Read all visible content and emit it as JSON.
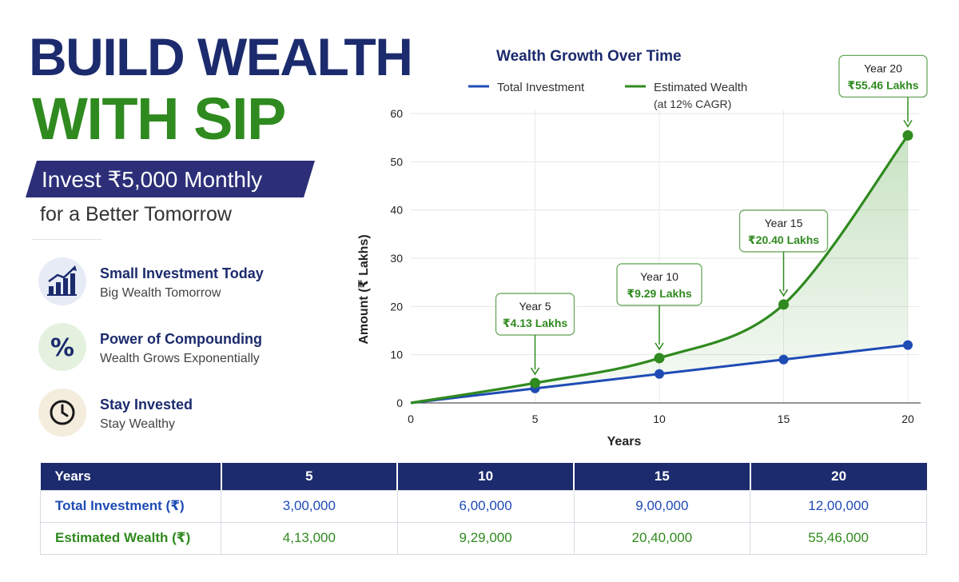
{
  "left": {
    "title_line1": "BUILD WEALTH",
    "title_line2": "WITH SIP",
    "banner": "Invest ₹5,000 Monthly",
    "subline": "for a Better Tomorrow",
    "features": [
      {
        "icon": "bar-chart-growth-icon",
        "title": "Small Investment Today",
        "subtitle": "Big Wealth Tomorrow"
      },
      {
        "icon": "percent-icon",
        "title": "Power of Compounding",
        "subtitle": "Wealth Grows Exponentially"
      },
      {
        "icon": "clock-icon",
        "title": "Stay Invested",
        "subtitle": "Stay Wealthy"
      }
    ]
  },
  "colors": {
    "navy": "#1c2b6d",
    "green": "#2f8a1f",
    "blue": "#1f4bb5",
    "banner": "#2c2f78"
  },
  "chart_data": {
    "type": "line",
    "title": "Wealth Growth Over Time",
    "xlabel": "Years",
    "ylabel": "Amount (₹ Lakhs)",
    "xlim": [
      0,
      20
    ],
    "ylim": [
      0,
      60
    ],
    "x_ticks": [
      0,
      5,
      10,
      15,
      20
    ],
    "y_ticks": [
      0,
      10,
      20,
      30,
      40,
      50,
      60
    ],
    "legend_position": "top",
    "series": [
      {
        "name": "Total Investment",
        "color": "#1f4bb5",
        "x": [
          0,
          5,
          10,
          15,
          20
        ],
        "y": [
          0,
          3,
          6,
          9,
          12
        ],
        "markers": [
          5,
          10,
          15,
          20
        ]
      },
      {
        "name": "Estimated Wealth",
        "name_note": "(at 12% CAGR)",
        "color": "#2f8a1f",
        "x": [
          0,
          5,
          10,
          15,
          20
        ],
        "y": [
          0,
          4.13,
          9.29,
          20.4,
          55.46
        ],
        "markers": [
          5,
          10,
          15,
          20
        ],
        "filled": true
      }
    ],
    "annotations": [
      {
        "year_label": "Year 5",
        "value_label": "₹4.13 Lakhs"
      },
      {
        "year_label": "Year 10",
        "value_label": "₹9.29 Lakhs"
      },
      {
        "year_label": "Year 15",
        "value_label": "₹20.40 Lakhs"
      },
      {
        "year_label": "Year 20",
        "value_label": "₹55.46 Lakhs"
      }
    ]
  },
  "table": {
    "headers": [
      "Years",
      "5",
      "10",
      "15",
      "20"
    ],
    "rows": [
      {
        "label": "Total Investment (₹)",
        "values": [
          "3,00,000",
          "6,00,000",
          "9,00,000",
          "12,00,000"
        ]
      },
      {
        "label": "Estimated Wealth (₹)",
        "values": [
          "4,13,000",
          "9,29,000",
          "20,40,000",
          "55,46,000"
        ]
      }
    ]
  }
}
